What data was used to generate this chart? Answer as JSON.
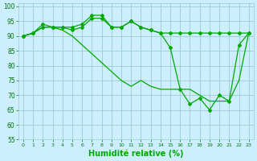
{
  "x": [
    0,
    1,
    2,
    3,
    4,
    5,
    6,
    7,
    8,
    9,
    10,
    11,
    12,
    13,
    14,
    15,
    16,
    17,
    18,
    19,
    20,
    21,
    22,
    23
  ],
  "line1": [
    90,
    91,
    94,
    93,
    93,
    93,
    94,
    97,
    97,
    93,
    93,
    95,
    93,
    92,
    91,
    91,
    91,
    91,
    91,
    91,
    91,
    91,
    91,
    91
  ],
  "line2": [
    90,
    91,
    93,
    93,
    93,
    92,
    93,
    96,
    96,
    93,
    93,
    95,
    93,
    92,
    91,
    86,
    72,
    67,
    69,
    65,
    70,
    68,
    87,
    91
  ],
  "line3": [
    90,
    91,
    93,
    93,
    92,
    90,
    87,
    84,
    81,
    78,
    75,
    73,
    75,
    73,
    72,
    72,
    72,
    72,
    70,
    68,
    68,
    68,
    75,
    91
  ],
  "line_color": "#00aa00",
  "bg_color": "#cceeff",
  "grid_color": "#99cccc",
  "xlabel": "Humidité relative (%)",
  "ylim": [
    55,
    101
  ],
  "xlim": [
    -0.5,
    23.5
  ],
  "yticks": [
    55,
    60,
    65,
    70,
    75,
    80,
    85,
    90,
    95,
    100
  ],
  "xticks": [
    0,
    1,
    2,
    3,
    4,
    5,
    6,
    7,
    8,
    9,
    10,
    11,
    12,
    13,
    14,
    15,
    16,
    17,
    18,
    19,
    20,
    21,
    22,
    23
  ],
  "marker": "D",
  "markersize": 2.0,
  "linewidth": 0.9,
  "xlabel_fontsize": 7,
  "tick_fontsize": 5.5
}
